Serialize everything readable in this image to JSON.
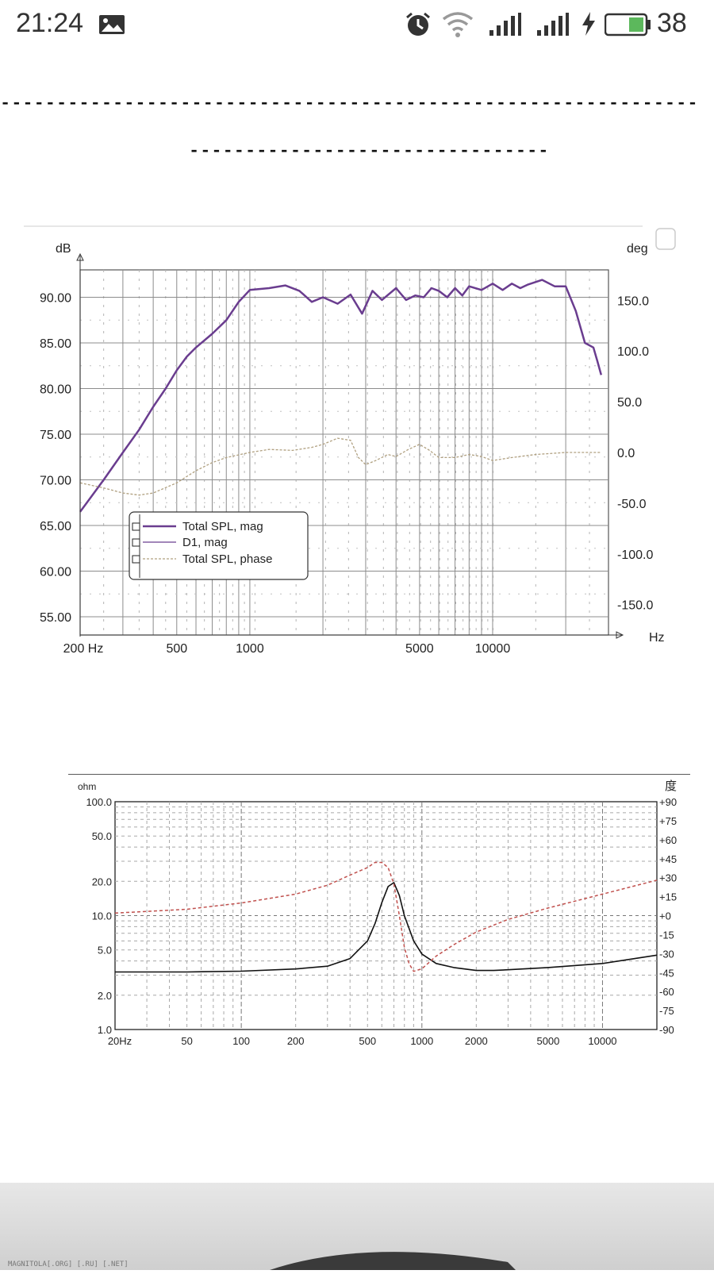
{
  "status_bar": {
    "time": "21:24",
    "battery_level": "38",
    "icons": [
      "image-icon",
      "alarm-icon",
      "wifi-icon",
      "signal-icon",
      "signal-icon",
      "charging-icon",
      "battery-icon"
    ]
  },
  "separator": {
    "line1": "--------------------------------------------------------------",
    "line2": "--------------------------------"
  },
  "chart_data": [
    {
      "type": "line",
      "left_axis_label": "dB",
      "right_axis_label": "deg",
      "x_axis_label": "Hz",
      "x_scale": "log",
      "x_ticks": [
        "200 Hz",
        "500",
        "1000",
        "5000",
        "10000"
      ],
      "y_ticks": [
        "90.00",
        "85.00",
        "80.00",
        "75.00",
        "70.00",
        "65.00",
        "60.00",
        "55.00"
      ],
      "y2_ticks": [
        "150.0",
        "100.0",
        "50.0",
        "0.0",
        "-50.0",
        "-100.0",
        "-150.0"
      ],
      "ylim": [
        53,
        93
      ],
      "y2lim": [
        -180,
        180
      ],
      "xlim": [
        200,
        30000
      ],
      "grid": true,
      "legend_entries": [
        "Total SPL, mag",
        "D1, mag",
        "Total SPL, phase"
      ],
      "legend_position": "lower-left",
      "colors": {
        "mag": "#6a3d8f",
        "phase": "#b0a080"
      },
      "series": [
        {
          "name": "Total SPL, mag",
          "axis": "left",
          "x": [
            200,
            250,
            300,
            350,
            400,
            450,
            500,
            550,
            600,
            700,
            800,
            900,
            1000,
            1200,
            1400,
            1600,
            1800,
            2000,
            2300,
            2600,
            2900,
            3200,
            3500,
            4000,
            4400,
            4800,
            5200,
            5600,
            6000,
            6500,
            7000,
            7500,
            8000,
            9000,
            10000,
            11000,
            12000,
            13000,
            14000,
            16000,
            18000,
            20000,
            22000,
            24000,
            26000,
            27000,
            28000
          ],
          "y": [
            66.5,
            70.0,
            73.0,
            75.5,
            78.0,
            80.0,
            82.0,
            83.5,
            84.5,
            86.0,
            87.5,
            89.5,
            90.8,
            91.0,
            91.3,
            90.7,
            89.5,
            90.0,
            89.3,
            90.3,
            88.2,
            90.7,
            89.7,
            91.0,
            89.7,
            90.2,
            90.0,
            91.0,
            90.7,
            90.0,
            91.0,
            90.2,
            91.2,
            90.8,
            91.5,
            90.8,
            91.5,
            91.0,
            91.4,
            91.9,
            91.2,
            91.2,
            88.5,
            85.0,
            84.5,
            83.0,
            81.5
          ]
        },
        {
          "name": "D1, mag",
          "axis": "left",
          "x": [
            200,
            250,
            300,
            350,
            400,
            450,
            500,
            550,
            600,
            700,
            800,
            900,
            1000,
            1200,
            1400,
            1600,
            1800,
            2000,
            2300,
            2600,
            2900,
            3200,
            3500,
            4000,
            4400,
            4800,
            5200,
            5600,
            6000,
            6500,
            7000,
            7500,
            8000,
            9000,
            10000,
            11000,
            12000,
            13000,
            14000,
            16000,
            18000,
            20000,
            22000,
            24000,
            26000,
            27000,
            28000
          ],
          "y": [
            66.5,
            70.0,
            73.0,
            75.5,
            78.0,
            80.0,
            82.0,
            83.5,
            84.5,
            86.0,
            87.5,
            89.5,
            90.8,
            91.0,
            91.3,
            90.7,
            89.5,
            90.0,
            89.3,
            90.3,
            88.2,
            90.7,
            89.7,
            91.0,
            89.7,
            90.2,
            90.0,
            91.0,
            90.7,
            90.0,
            91.0,
            90.2,
            91.2,
            90.8,
            91.5,
            90.8,
            91.5,
            91.0,
            91.4,
            91.9,
            91.2,
            91.2,
            88.5,
            85.0,
            84.5,
            83.0,
            81.5
          ]
        },
        {
          "name": "Total SPL, phase",
          "axis": "right",
          "x": [
            200,
            250,
            300,
            350,
            400,
            500,
            600,
            700,
            800,
            1000,
            1200,
            1500,
            1800,
            2000,
            2300,
            2600,
            2800,
            3000,
            3300,
            3700,
            4000,
            4500,
            5000,
            5500,
            6000,
            7000,
            8000,
            9000,
            10000,
            12000,
            15000,
            20000,
            25000,
            28000
          ],
          "y": [
            -30,
            -35,
            -40,
            -42,
            -40,
            -30,
            -18,
            -10,
            -5,
            0,
            3,
            2,
            5,
            8,
            14,
            12,
            -5,
            -12,
            -8,
            -2,
            -4,
            3,
            8,
            2,
            -5,
            -5,
            -2,
            -4,
            -8,
            -5,
            -2,
            0,
            0,
            0
          ]
        }
      ]
    },
    {
      "type": "line",
      "left_axis_label": "ohm",
      "right_axis_label": "度",
      "x_scale": "log",
      "y_scale": "log",
      "x_ticks": [
        "20Hz",
        "50",
        "100",
        "200",
        "500",
        "1000",
        "2000",
        "5000",
        "10000"
      ],
      "y_ticks": [
        "100.0",
        "50.0",
        "20.0",
        "10.0",
        "5.0",
        "2.0",
        "1.0"
      ],
      "y2_ticks": [
        "+90",
        "+75",
        "+60",
        "+45",
        "+30",
        "+15",
        "+0",
        "-15",
        "-30",
        "-45",
        "-60",
        "-75",
        "-90"
      ],
      "xlim": [
        20,
        20000
      ],
      "ylim": [
        1,
        100
      ],
      "y2lim": [
        -90,
        90
      ],
      "grid": true,
      "colors": {
        "impedance": "#111111",
        "phase": "#c0504d"
      },
      "series": [
        {
          "axis": "left",
          "x": [
            20,
            50,
            100,
            200,
            300,
            400,
            500,
            550,
            600,
            650,
            700,
            750,
            800,
            900,
            1000,
            1200,
            1500,
            2000,
            2500,
            3000,
            5000,
            10000,
            20000
          ],
          "y": [
            3.2,
            3.2,
            3.25,
            3.4,
            3.6,
            4.2,
            6.0,
            8.5,
            13.0,
            18.0,
            19.5,
            15.0,
            10.0,
            6.0,
            4.6,
            3.8,
            3.5,
            3.3,
            3.3,
            3.35,
            3.5,
            3.8,
            4.5
          ]
        },
        {
          "axis": "right",
          "x": [
            20,
            50,
            100,
            200,
            300,
            400,
            500,
            550,
            600,
            650,
            700,
            750,
            800,
            850,
            900,
            1000,
            1200,
            1500,
            2000,
            3000,
            5000,
            10000,
            20000
          ],
          "y": [
            2,
            5,
            10,
            17,
            24,
            32,
            38,
            42,
            42,
            38,
            25,
            0,
            -25,
            -38,
            -44,
            -42,
            -32,
            -23,
            -13,
            -3,
            6,
            17,
            28
          ]
        }
      ]
    }
  ]
}
